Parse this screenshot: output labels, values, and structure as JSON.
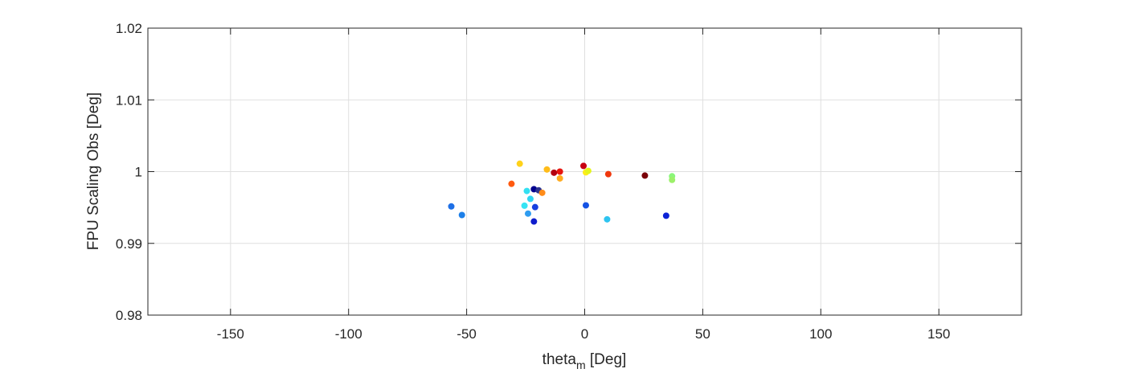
{
  "chart_data": {
    "type": "scatter",
    "title": "",
    "xlabel_main": "theta",
    "xlabel_sub": "m",
    "xlabel_unit": " [Deg]",
    "ylabel": "FPU Scaling Obs [Deg]",
    "xlim": [
      -185,
      185
    ],
    "ylim": [
      0.98,
      1.02
    ],
    "xticks": [
      -150,
      -100,
      -50,
      0,
      50,
      100,
      150
    ],
    "xtick_labels": [
      "-150",
      "-100",
      "-50",
      "0",
      "50",
      "100",
      "150"
    ],
    "yticks": [
      0.98,
      0.99,
      1.0,
      1.01,
      1.02
    ],
    "ytick_labels": [
      "0.98",
      "0.99",
      "1",
      "1.01",
      "1.02"
    ],
    "grid": true,
    "points": [
      {
        "x": -56.5,
        "y": 0.99515,
        "color": "#1e6fe6"
      },
      {
        "x": -52.0,
        "y": 0.99395,
        "color": "#1d7fe8"
      },
      {
        "x": -31.0,
        "y": 0.9983,
        "color": "#ff5a10"
      },
      {
        "x": -27.5,
        "y": 1.0011,
        "color": "#ffd21a"
      },
      {
        "x": -24.5,
        "y": 0.9973,
        "color": "#33e0f2"
      },
      {
        "x": -24.0,
        "y": 0.99415,
        "color": "#2f9cf0"
      },
      {
        "x": -25.5,
        "y": 0.99525,
        "color": "#36e4f4"
      },
      {
        "x": -23.0,
        "y": 0.9962,
        "color": "#2ed4f2"
      },
      {
        "x": -21.5,
        "y": 0.99755,
        "color": "#00008f"
      },
      {
        "x": -21.0,
        "y": 0.99505,
        "color": "#1640e0"
      },
      {
        "x": -21.5,
        "y": 0.99305,
        "color": "#0e1ccc"
      },
      {
        "x": -19.5,
        "y": 0.9974,
        "color": "#2c3390"
      },
      {
        "x": -18.0,
        "y": 0.99705,
        "color": "#ff8c1a"
      },
      {
        "x": -16.0,
        "y": 1.0003,
        "color": "#ffbc1a"
      },
      {
        "x": -13.0,
        "y": 0.99985,
        "color": "#b30010"
      },
      {
        "x": -10.5,
        "y": 1.0,
        "color": "#e6150f"
      },
      {
        "x": -10.5,
        "y": 0.99905,
        "color": "#ffac20"
      },
      {
        "x": -0.5,
        "y": 1.0008,
        "color": "#c80010"
      },
      {
        "x": 0.5,
        "y": 0.9999,
        "color": "#ffec1a"
      },
      {
        "x": 1.5,
        "y": 1.0001,
        "color": "#e4f51c"
      },
      {
        "x": 0.5,
        "y": 0.9953,
        "color": "#1452e4"
      },
      {
        "x": 9.5,
        "y": 0.99335,
        "color": "#2ec4f0"
      },
      {
        "x": 10.0,
        "y": 0.99965,
        "color": "#f0380d"
      },
      {
        "x": 25.5,
        "y": 0.99945,
        "color": "#7a0008"
      },
      {
        "x": 34.5,
        "y": 0.99385,
        "color": "#0c22d6"
      },
      {
        "x": 37.0,
        "y": 0.99935,
        "color": "#8af77a"
      },
      {
        "x": 37.0,
        "y": 0.99885,
        "color": "#9cf06a"
      }
    ]
  }
}
